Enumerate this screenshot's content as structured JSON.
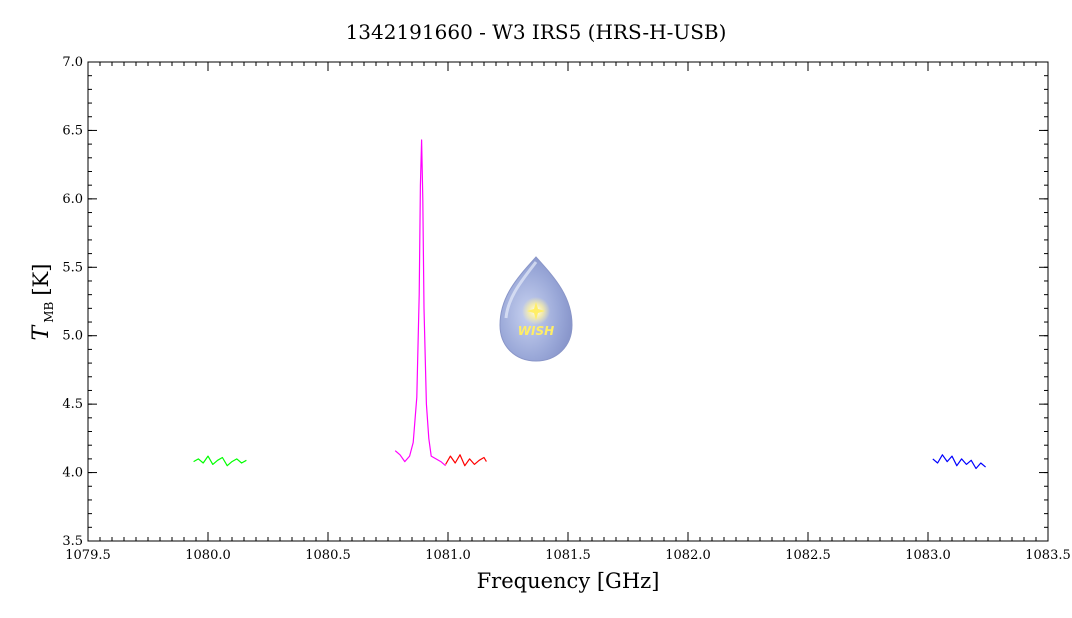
{
  "chart_data": {
    "type": "line",
    "title": "1342191660 - W3 IRS5 (HRS-H-USB)",
    "xlabel": "Frequency [GHz]",
    "ylabel": {
      "main": "T",
      "sub": "MB",
      "unit": "[K]"
    },
    "xlim": [
      1079.5,
      1083.5
    ],
    "ylim": [
      3.5,
      7.0
    ],
    "x_ticks": [
      1079.5,
      1080.0,
      1080.5,
      1081.0,
      1081.5,
      1082.0,
      1082.5,
      1083.0,
      1083.5
    ],
    "x_tick_labels": [
      "1079.5",
      "1080.0",
      "1080.5",
      "1081.0",
      "1081.5",
      "1082.0",
      "1082.5",
      "1083.0",
      "1083.5"
    ],
    "y_ticks": [
      3.5,
      4.0,
      4.5,
      5.0,
      5.5,
      6.0,
      6.5,
      7.0
    ],
    "y_tick_labels": [
      "3.5",
      "4.0",
      "4.5",
      "5.0",
      "5.5",
      "6.0",
      "6.5",
      "7.0"
    ],
    "grid": false,
    "series": [
      {
        "color": "#00ff00",
        "x": [
          1079.94,
          1079.96,
          1079.98,
          1080.0,
          1080.02,
          1080.04,
          1080.06,
          1080.08,
          1080.1,
          1080.12,
          1080.14,
          1080.16
        ],
        "y": [
          4.08,
          4.1,
          4.07,
          4.12,
          4.06,
          4.09,
          4.11,
          4.05,
          4.08,
          4.1,
          4.07,
          4.09
        ]
      },
      {
        "color": "#ff00ff",
        "x": [
          1080.78,
          1080.8,
          1080.82,
          1080.84,
          1080.855,
          1080.87,
          1080.88,
          1080.885,
          1080.89,
          1080.895,
          1080.9,
          1080.91,
          1080.92,
          1080.93,
          1080.95,
          1080.97,
          1080.99
        ],
        "y": [
          4.16,
          4.13,
          4.08,
          4.12,
          4.22,
          4.55,
          5.3,
          6.1,
          6.43,
          6.0,
          5.2,
          4.5,
          4.25,
          4.12,
          4.1,
          4.08,
          4.05
        ]
      },
      {
        "color": "#ff0000",
        "x": [
          1080.99,
          1081.01,
          1081.03,
          1081.05,
          1081.07,
          1081.09,
          1081.11,
          1081.13,
          1081.15,
          1081.16
        ],
        "y": [
          4.06,
          4.12,
          4.07,
          4.13,
          4.05,
          4.1,
          4.06,
          4.09,
          4.11,
          4.08
        ]
      },
      {
        "color": "#0000ff",
        "x": [
          1083.02,
          1083.04,
          1083.06,
          1083.08,
          1083.1,
          1083.12,
          1083.14,
          1083.16,
          1083.18,
          1083.2,
          1083.22,
          1083.24
        ],
        "y": [
          4.1,
          4.07,
          4.13,
          4.08,
          4.12,
          4.05,
          4.1,
          4.06,
          4.09,
          4.03,
          4.07,
          4.04
        ]
      }
    ]
  },
  "watermark": {
    "logo_text": "WISH",
    "fill_color": "#a8b4dc",
    "star_color": "#ffee66"
  }
}
